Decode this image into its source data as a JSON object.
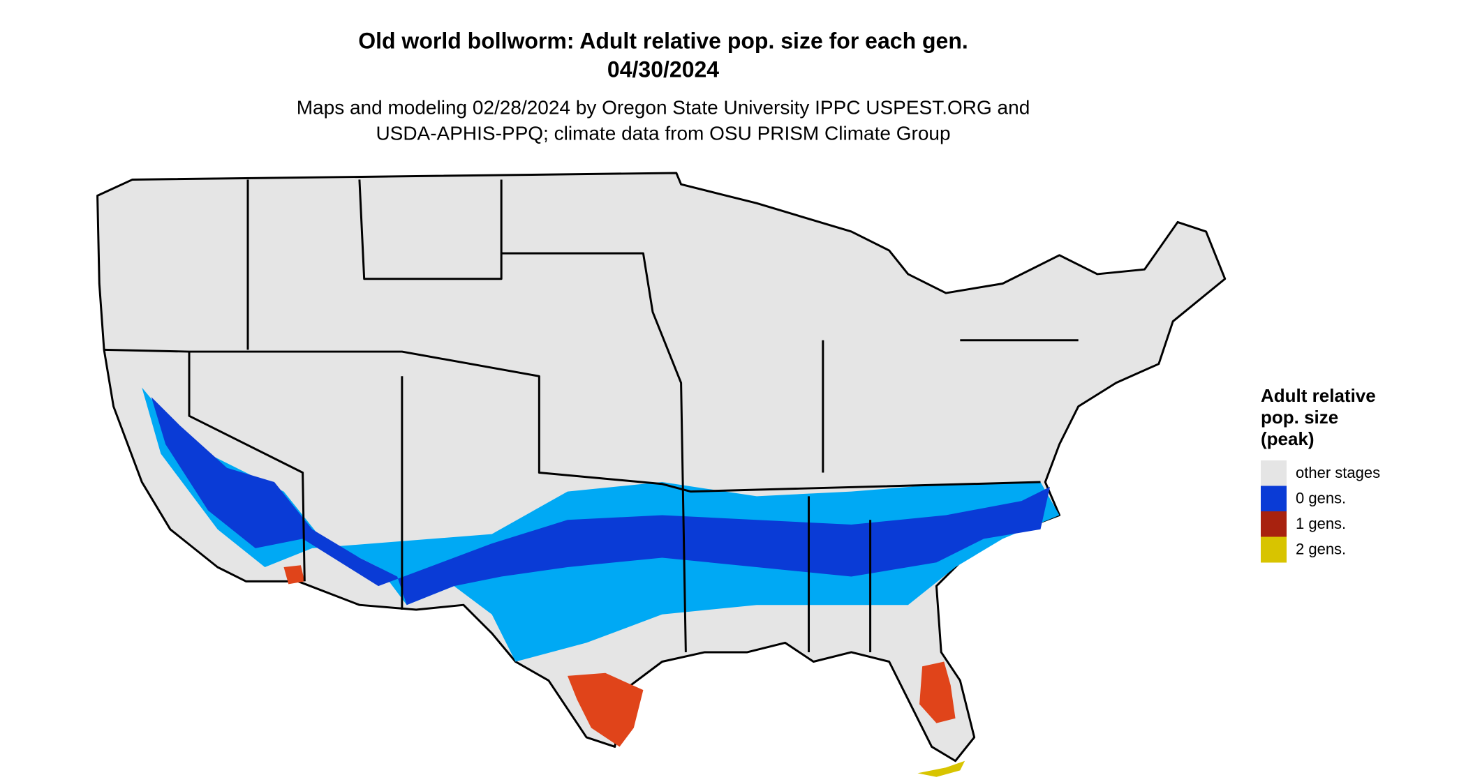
{
  "header": {
    "title": "Old world bollworm: Adult relative pop. size for each gen.",
    "date": "04/30/2024",
    "subtitle_lines": [
      "Maps and modeling 02/28/2024 by Oregon State University IPPC USPEST.ORG and",
      "USDA-APHIS-PPQ; climate data from OSU PRISM Climate Group"
    ]
  },
  "legend": {
    "title_lines": [
      "Adult relative",
      "pop. size",
      "(peak)"
    ],
    "items": [
      {
        "label": "other stages",
        "color": "#e5e5e5"
      },
      {
        "label": "0 gens.",
        "color": "#0a3bd6"
      },
      {
        "label": "1 gens.",
        "color": "#a8220f"
      },
      {
        "label": "2 gens.",
        "color": "#d8c400"
      }
    ]
  }
}
